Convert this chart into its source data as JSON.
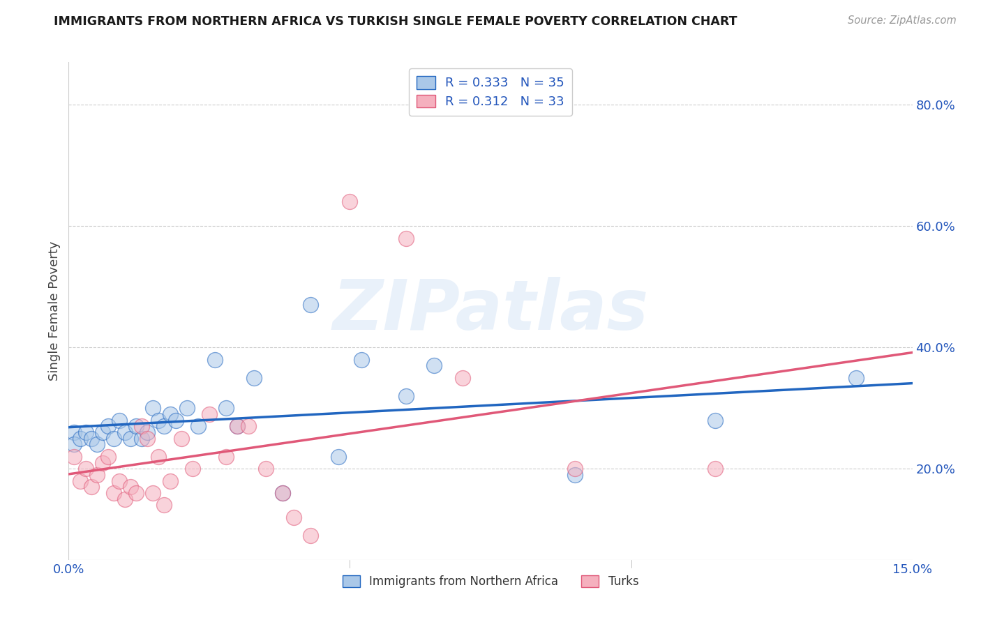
{
  "title": "IMMIGRANTS FROM NORTHERN AFRICA VS TURKISH SINGLE FEMALE POVERTY CORRELATION CHART",
  "source": "Source: ZipAtlas.com",
  "ylabel": "Single Female Poverty",
  "xlim": [
    0.0,
    0.15
  ],
  "ylim": [
    0.05,
    0.87
  ],
  "blue_R": "0.333",
  "blue_N": "35",
  "pink_R": "0.312",
  "pink_N": "33",
  "blue_color": "#aac8e8",
  "pink_color": "#f5b0be",
  "blue_line_color": "#2166c0",
  "pink_line_color": "#e05878",
  "legend_label_blue": "Immigrants from Northern Africa",
  "legend_label_pink": "Turks",
  "watermark": "ZIPatlas",
  "blue_scatter_x": [
    0.001,
    0.001,
    0.002,
    0.003,
    0.004,
    0.005,
    0.006,
    0.007,
    0.008,
    0.009,
    0.01,
    0.011,
    0.012,
    0.013,
    0.014,
    0.015,
    0.016,
    0.017,
    0.018,
    0.019,
    0.021,
    0.023,
    0.026,
    0.028,
    0.03,
    0.033,
    0.038,
    0.043,
    0.048,
    0.052,
    0.06,
    0.065,
    0.09,
    0.115,
    0.14
  ],
  "blue_scatter_y": [
    0.26,
    0.24,
    0.25,
    0.26,
    0.25,
    0.24,
    0.26,
    0.27,
    0.25,
    0.28,
    0.26,
    0.25,
    0.27,
    0.25,
    0.26,
    0.3,
    0.28,
    0.27,
    0.29,
    0.28,
    0.3,
    0.27,
    0.38,
    0.3,
    0.27,
    0.35,
    0.16,
    0.47,
    0.22,
    0.38,
    0.32,
    0.37,
    0.19,
    0.28,
    0.35
  ],
  "pink_scatter_x": [
    0.001,
    0.002,
    0.003,
    0.004,
    0.005,
    0.006,
    0.007,
    0.008,
    0.009,
    0.01,
    0.011,
    0.012,
    0.013,
    0.014,
    0.015,
    0.016,
    0.017,
    0.018,
    0.02,
    0.022,
    0.025,
    0.028,
    0.03,
    0.032,
    0.035,
    0.038,
    0.04,
    0.043,
    0.05,
    0.06,
    0.07,
    0.09,
    0.115
  ],
  "pink_scatter_y": [
    0.22,
    0.18,
    0.2,
    0.17,
    0.19,
    0.21,
    0.22,
    0.16,
    0.18,
    0.15,
    0.17,
    0.16,
    0.27,
    0.25,
    0.16,
    0.22,
    0.14,
    0.18,
    0.25,
    0.2,
    0.29,
    0.22,
    0.27,
    0.27,
    0.2,
    0.16,
    0.12,
    0.09,
    0.64,
    0.58,
    0.35,
    0.2,
    0.2
  ],
  "background_color": "#ffffff",
  "grid_color": "#cccccc",
  "yticks": [
    0.2,
    0.4,
    0.6,
    0.8
  ],
  "ytick_labels": [
    "20.0%",
    "40.0%",
    "60.0%",
    "80.0%"
  ],
  "xtick_labels_show": [
    "0.0%",
    "15.0%"
  ],
  "xtick_positions_show": [
    0.0,
    0.15
  ],
  "xtick_minor": [
    0.05,
    0.1
  ]
}
